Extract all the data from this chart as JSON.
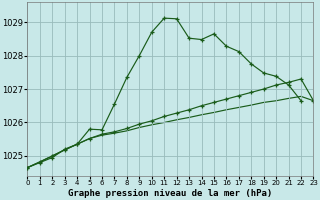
{
  "title": "Graphe pression niveau de la mer (hPa)",
  "background_color": "#c8e8e8",
  "grid_color": "#99bbbb",
  "line_color": "#1a5c1a",
  "xlim": [
    0,
    23
  ],
  "ylim": [
    1024.4,
    1029.6
  ],
  "yticks": [
    1025,
    1026,
    1027,
    1028,
    1029
  ],
  "xticks": [
    0,
    1,
    2,
    3,
    4,
    5,
    6,
    7,
    8,
    9,
    10,
    11,
    12,
    13,
    14,
    15,
    16,
    17,
    18,
    19,
    20,
    21,
    22,
    23
  ],
  "series1_x": [
    0,
    1,
    2,
    3,
    4,
    5,
    6,
    7,
    8,
    9,
    10,
    11,
    12,
    13,
    14,
    15,
    16,
    17,
    18,
    19,
    20,
    21,
    22
  ],
  "series1_y": [
    1024.65,
    1024.8,
    1024.95,
    1025.2,
    1025.35,
    1025.8,
    1025.78,
    1026.55,
    1027.35,
    1028.0,
    1028.7,
    1029.12,
    1029.1,
    1028.52,
    1028.48,
    1028.65,
    1028.28,
    1028.12,
    1027.75,
    1027.48,
    1027.38,
    1027.12,
    1026.65
  ],
  "series2_x": [
    0,
    1,
    2,
    3,
    4,
    5,
    6,
    7,
    8,
    9,
    10,
    11,
    12,
    13,
    14,
    15,
    16,
    17,
    18,
    19,
    20,
    21,
    22,
    23
  ],
  "series2_y": [
    1024.65,
    1024.82,
    1025.0,
    1025.18,
    1025.35,
    1025.52,
    1025.65,
    1025.72,
    1025.82,
    1025.95,
    1026.05,
    1026.18,
    1026.28,
    1026.38,
    1026.5,
    1026.6,
    1026.7,
    1026.8,
    1026.9,
    1027.0,
    1027.12,
    1027.2,
    1027.3,
    1026.65
  ],
  "series3_x": [
    0,
    1,
    2,
    3,
    4,
    5,
    6,
    7,
    8,
    9,
    10,
    11,
    12,
    13,
    14,
    15,
    16,
    17,
    18,
    19,
    20,
    21,
    22,
    23
  ],
  "series3_y": [
    1024.65,
    1024.82,
    1025.0,
    1025.18,
    1025.35,
    1025.52,
    1025.62,
    1025.68,
    1025.75,
    1025.85,
    1025.93,
    1026.0,
    1026.08,
    1026.15,
    1026.23,
    1026.3,
    1026.38,
    1026.45,
    1026.52,
    1026.6,
    1026.65,
    1026.72,
    1026.78,
    1026.65
  ],
  "figsize": [
    3.2,
    2.0
  ],
  "dpi": 100
}
